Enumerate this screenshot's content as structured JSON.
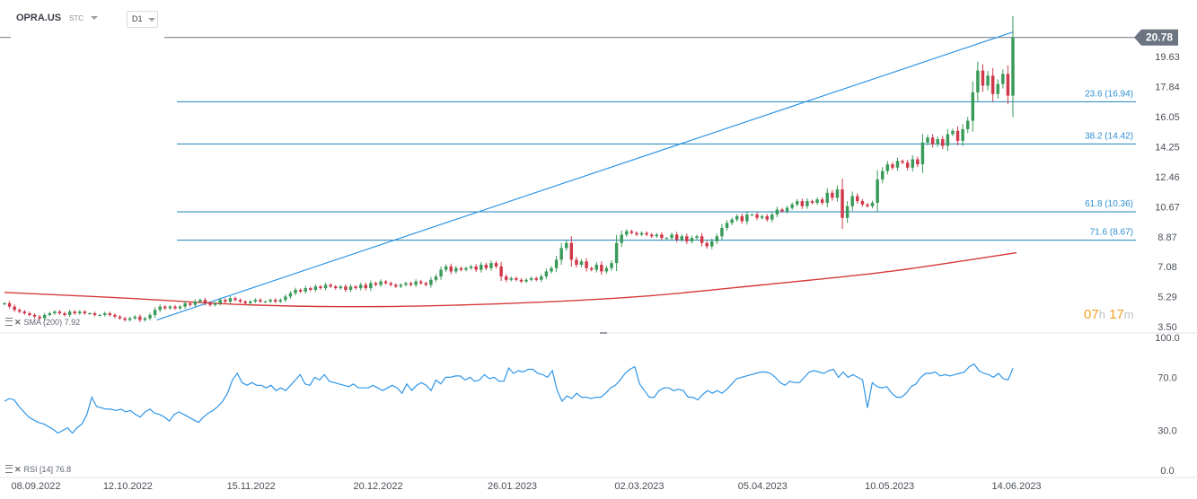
{
  "header": {
    "symbol": "OPRA.US",
    "instrument_type": "STC",
    "timeframe": "D1"
  },
  "price_label": "20.78",
  "timer": {
    "hours": "07",
    "hours_unit": "h",
    "minutes": "17",
    "minutes_unit": "m"
  },
  "legends": {
    "sma": "SMA (200) 7.92",
    "rsi": "RSI [14] 76.8"
  },
  "colors": {
    "bull": "#3a9a5a",
    "bear": "#d0384a",
    "trendline": "#2e95e6",
    "sma": "#d63a3a",
    "rsi": "#2e95e6",
    "price_label_bg": "#6b7480"
  },
  "chart_data": [
    {
      "type": "candlestick",
      "title": "OPRA.US",
      "y_ticks": [
        "20.78",
        "19.63",
        "17.84",
        "16.05",
        "14.25",
        "12.46",
        "10.67",
        "8.87",
        "7.08",
        "5.29",
        "3.50"
      ],
      "ylim": [
        3.5,
        21.3
      ],
      "x_ticks": [
        "08.09.2022",
        "12.10.2022",
        "15.11.2022",
        "20.12.2022",
        "26.01.2023",
        "02.03.2023",
        "05.04.2023",
        "10.05.2023",
        "14.06.2023"
      ],
      "last_close": 20.78,
      "fibonacci": [
        {
          "label": "23.6 (16.94)",
          "value": 16.94
        },
        {
          "label": "38.2 (14.42)",
          "value": 14.42
        },
        {
          "label": "61.8 (10.36)",
          "value": 10.36
        },
        {
          "label": "71.6 (8.67)",
          "value": 8.67
        }
      ],
      "trendline": {
        "from": {
          "date": "20.10.2022",
          "value": 3.9
        },
        "to": {
          "date": "13.06.2023",
          "value": 21.1
        }
      },
      "sma_200": {
        "label": "SMA (200) 7.92",
        "points": [
          {
            "date": "08.09.2022",
            "value": 5.55
          },
          {
            "date": "12.10.2022",
            "value": 5.2
          },
          {
            "date": "15.11.2022",
            "value": 4.8
          },
          {
            "date": "20.12.2022",
            "value": 4.7
          },
          {
            "date": "26.01.2023",
            "value": 4.9
          },
          {
            "date": "02.03.2023",
            "value": 5.3
          },
          {
            "date": "05.04.2023",
            "value": 6.0
          },
          {
            "date": "10.05.2023",
            "value": 6.8
          },
          {
            "date": "14.06.2023",
            "value": 7.92
          }
        ]
      },
      "candles_by_month": [
        {
          "period": "Sep 2022",
          "closes": [
            4.9,
            4.7,
            4.5,
            4.4,
            4.3,
            4.2,
            4.1,
            4.0,
            4.2,
            4.3,
            4.4,
            4.3,
            4.2,
            4.4,
            4.3,
            4.4,
            4.3,
            4.3,
            4.2,
            4.2,
            4.3,
            4.2
          ]
        },
        {
          "period": "Oct 2022",
          "closes": [
            4.1,
            4.0,
            3.9,
            4.0,
            4.1,
            3.9,
            4.0,
            4.2,
            4.5,
            4.7,
            4.6,
            4.7,
            4.6,
            4.7,
            4.9,
            4.8,
            5.0,
            5.1,
            4.9,
            4.8,
            4.9
          ]
        },
        {
          "period": "Nov 2022",
          "closes": [
            5.1,
            5.0,
            5.2,
            5.1,
            5.0,
            4.9,
            5.0,
            5.1,
            5.0,
            5.0,
            5.1,
            5.0,
            5.1,
            5.3,
            5.5,
            5.7,
            5.6,
            5.8,
            5.7,
            5.9,
            5.8,
            6.0
          ]
        },
        {
          "period": "Dec 2022",
          "closes": [
            5.9,
            5.8,
            5.9,
            5.7,
            5.9,
            5.8,
            6.0,
            5.8,
            6.1,
            6.0,
            6.2,
            6.1,
            6.0,
            5.9,
            6.0,
            6.1,
            6.0,
            6.2,
            6.1,
            6.0,
            6.3
          ]
        },
        {
          "period": "Jan 2023",
          "closes": [
            6.5,
            6.9,
            7.1,
            6.8,
            7.0,
            6.9,
            7.0,
            7.1,
            6.9,
            7.2,
            7.0,
            7.3,
            7.1,
            6.5,
            6.3,
            6.4,
            6.3,
            6.2,
            6.3,
            6.4,
            6.3
          ]
        },
        {
          "period": "Feb 2023",
          "closes": [
            6.5,
            6.8,
            7.0,
            7.5,
            8.2,
            8.5,
            7.5,
            7.2,
            7.4,
            7.0,
            6.9,
            7.2,
            6.8,
            7.0,
            7.3,
            8.5,
            9.0,
            9.2,
            9.1
          ]
        },
        {
          "period": "Mar 2023",
          "closes": [
            9.0,
            9.1,
            9.0,
            8.9,
            9.0,
            8.8,
            8.8,
            9.0,
            8.7,
            8.9,
            8.6,
            8.8,
            8.9,
            8.5,
            8.3,
            8.6,
            8.9,
            9.4,
            9.7,
            9.9,
            10.1,
            9.8,
            10.2
          ]
        },
        {
          "period": "Apr 2023",
          "closes": [
            10.2,
            10.0,
            10.1,
            9.9,
            10.2,
            10.5,
            10.4,
            10.6,
            10.8,
            11.0,
            10.7,
            11.0,
            10.9,
            11.1,
            10.9,
            11.5,
            11.2,
            11.7,
            10.0,
            10.7
          ]
        },
        {
          "period": "May 2023",
          "closes": [
            11.3,
            11.0,
            10.8,
            10.7,
            10.9,
            12.3,
            12.8,
            13.2,
            13.0,
            13.4,
            13.3,
            13.0,
            13.5,
            13.2,
            14.5,
            14.8,
            14.4,
            14.7,
            14.3,
            15.0,
            15.2,
            14.6,
            15.3
          ]
        },
        {
          "period": "Jun 2023",
          "closes": [
            15.8,
            17.5,
            18.8,
            17.9,
            18.5,
            17.4,
            18.0,
            18.6,
            17.3,
            20.78
          ]
        }
      ]
    },
    {
      "type": "line",
      "title": "RSI [14] 76.8",
      "y_ticks": [
        "100.0",
        "70.0",
        "30.0",
        "0.0"
      ],
      "ylim": [
        0,
        100
      ],
      "guide_levels": [
        70,
        30
      ],
      "last_value": 76.8,
      "values_by_month": [
        {
          "period": "Sep 2022",
          "values": [
            52,
            54,
            53,
            48,
            44,
            40,
            38,
            36,
            35,
            33,
            31,
            28,
            30,
            32,
            28,
            32,
            35,
            42,
            55,
            48,
            47,
            46
          ]
        },
        {
          "period": "Oct 2022",
          "values": [
            46,
            45,
            46,
            44,
            45,
            42,
            40,
            44,
            46,
            43,
            42,
            40,
            37,
            42,
            44,
            42,
            40,
            38,
            36,
            40,
            43
          ]
        },
        {
          "period": "Nov 2022",
          "values": [
            45,
            48,
            52,
            58,
            68,
            73,
            66,
            64,
            66,
            64,
            64,
            62,
            64,
            60,
            62,
            60,
            64,
            68,
            72,
            65,
            64,
            70
          ]
        },
        {
          "period": "Dec 2022",
          "values": [
            68,
            72,
            67,
            66,
            65,
            64,
            63,
            65,
            62,
            62,
            62,
            64,
            62,
            60,
            62,
            64,
            62,
            58,
            65,
            60,
            64
          ]
        },
        {
          "period": "Jan 2023",
          "values": [
            66,
            64,
            60,
            68,
            65,
            70,
            70,
            71,
            71,
            68,
            70,
            67,
            68,
            72,
            69,
            70,
            67,
            67,
            77,
            73,
            75,
            74,
            76,
            76,
            73,
            72
          ]
        },
        {
          "period": "Feb 2023",
          "values": [
            70,
            75,
            60,
            52,
            56,
            54,
            58,
            55,
            55,
            54,
            55,
            55,
            58,
            62,
            64,
            68,
            73,
            76,
            78
          ]
        },
        {
          "period": "Mar 2023",
          "values": [
            65,
            60,
            55,
            55,
            60,
            62,
            62,
            60,
            61,
            60,
            55,
            55,
            53,
            57,
            60,
            58,
            60,
            58,
            61,
            65,
            69,
            70,
            71,
            72
          ]
        },
        {
          "period": "Apr 2023",
          "values": [
            73,
            74,
            74,
            73,
            70,
            66,
            64,
            67,
            66,
            66,
            70,
            74,
            75,
            74,
            73,
            75,
            76,
            70,
            74,
            70,
            72
          ]
        },
        {
          "period": "May 2023",
          "values": [
            70,
            68,
            47,
            66,
            63,
            62,
            63,
            58,
            55,
            55,
            58,
            63,
            65,
            70,
            73,
            73,
            74,
            71,
            72,
            71,
            72,
            73,
            74
          ]
        },
        {
          "period": "Jun 2023",
          "values": [
            78,
            80,
            75,
            73,
            72,
            70,
            73,
            69,
            68,
            76.8
          ]
        }
      ]
    }
  ]
}
